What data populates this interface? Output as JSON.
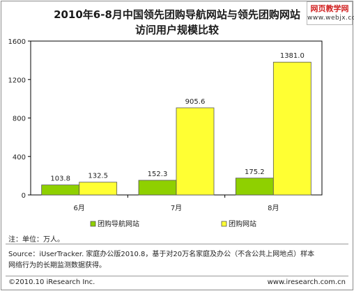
{
  "title_line1": "2010年6-8月中国领先团购导航网站与领先团购网站",
  "title_line2": "访问用户规模比较",
  "watermark": {
    "top": "网页教学网",
    "bottom": "www.webjx.com"
  },
  "note": "注：单位：万人。",
  "source_line1": "Source：iUserTracker. 家庭办公版2010.8，基于对20万名家庭及办公（不含公共上网地点）样本",
  "source_line2": "网络行为的长期监测数据获得。",
  "copyright": "©2010.10 iResearch Inc.",
  "website": "www.iresearch.com.cn",
  "chart_data": {
    "type": "bar",
    "title": "2010年6-8月中国领先团购导航网站与领先团购网站访问用户规模比较",
    "categories": [
      "6月",
      "7月",
      "8月"
    ],
    "series": [
      {
        "name": "团购导航网站",
        "values": [
          103.8,
          152.3,
          175.2
        ],
        "color": "#8fd000"
      },
      {
        "name": "团购网站",
        "values": [
          132.5,
          905.6,
          1381.0
        ],
        "color": "#ffff33"
      }
    ],
    "value_labels": [
      [
        "103.8",
        "152.3",
        "175.2"
      ],
      [
        "132.5",
        "905.6",
        "1381.0"
      ]
    ],
    "yticks": [
      "0",
      "400",
      "800",
      "1200",
      "1600"
    ],
    "ylim": [
      0,
      1600
    ],
    "unit": "万人",
    "grid": false,
    "legend_position": "bottom"
  }
}
